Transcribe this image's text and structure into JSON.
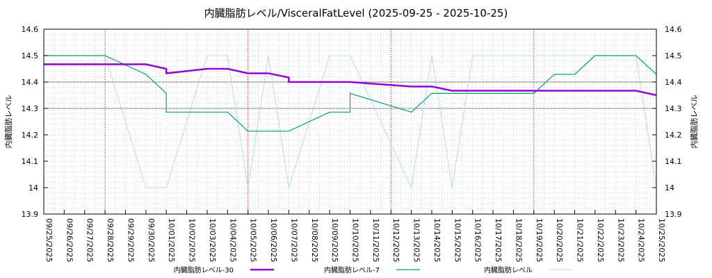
{
  "chart_data": {
    "type": "line",
    "title": "内臓脂肪レベル/VisceralFatLevel (2025-09-25 - 2025-10-25)",
    "ylabel_left": "内臓脂肪レベル",
    "ylabel_right": "内臓脂肪レベル",
    "ylim": [
      13.9,
      14.6
    ],
    "yticks": [
      13.9,
      14,
      14.1,
      14.2,
      14.3,
      14.4,
      14.5,
      14.6
    ],
    "ytick_labels": [
      "13.9",
      "14",
      "14.1",
      "14.2",
      "14.3",
      "14.4",
      "14.5",
      "14.6"
    ],
    "xticks": [
      "09/25/2025",
      "09/26/2025",
      "09/27/2025",
      "09/28/2025",
      "09/29/2025",
      "09/30/2025",
      "10/01/2025",
      "10/02/2025",
      "10/03/2025",
      "10/04/2025",
      "10/05/2025",
      "10/06/2025",
      "10/07/2025",
      "10/08/2025",
      "10/09/2025",
      "10/10/2025",
      "10/11/2025",
      "10/12/2025",
      "10/13/2025",
      "10/14/2025",
      "10/15/2025",
      "10/16/2025",
      "10/17/2025",
      "10/18/2025",
      "10/19/2025",
      "10/20/2025",
      "10/21/2025",
      "10/22/2025",
      "10/23/2025",
      "10/24/2025",
      "10/25/2025"
    ],
    "week_markers": [
      3,
      10,
      17,
      24
    ],
    "reference_lines": [
      {
        "y": 14.4,
        "color": "#0000cc"
      },
      {
        "y": 14.3,
        "color": "#8b0000"
      }
    ],
    "legend_position": "bottom",
    "series": [
      {
        "name": "内臓脂肪レベル-30",
        "color": "#9400d3",
        "width": 2.5,
        "points": [
          [
            0,
            14.467
          ],
          [
            5,
            14.467
          ],
          [
            6,
            14.45
          ],
          [
            6,
            14.433
          ],
          [
            8,
            14.45
          ],
          [
            9,
            14.45
          ],
          [
            10,
            14.433
          ],
          [
            11,
            14.433
          ],
          [
            12,
            14.417
          ],
          [
            12,
            14.4
          ],
          [
            15,
            14.4
          ],
          [
            18,
            14.383
          ],
          [
            19,
            14.383
          ],
          [
            20,
            14.367
          ],
          [
            29,
            14.367
          ],
          [
            30,
            14.35
          ]
        ]
      },
      {
        "name": "内臓脂肪レベル-7",
        "color": "#009e73",
        "width": 1.2,
        "points": [
          [
            0,
            14.5
          ],
          [
            3,
            14.5
          ],
          [
            5,
            14.429
          ],
          [
            6,
            14.357
          ],
          [
            6,
            14.286
          ],
          [
            9,
            14.286
          ],
          [
            10,
            14.214
          ],
          [
            12,
            14.214
          ],
          [
            14,
            14.286
          ],
          [
            15,
            14.286
          ],
          [
            15,
            14.357
          ],
          [
            18,
            14.286
          ],
          [
            19,
            14.357
          ],
          [
            24,
            14.357
          ],
          [
            25,
            14.429
          ],
          [
            26,
            14.429
          ],
          [
            27,
            14.5
          ],
          [
            29,
            14.5
          ],
          [
            30,
            14.429
          ]
        ]
      },
      {
        "name": "内臓脂肪レベル",
        "color": "#b0dcf0",
        "width": 1,
        "points": [
          [
            0,
            14.5
          ],
          [
            3,
            14.5
          ],
          [
            5,
            14.0
          ],
          [
            6,
            14.0
          ],
          [
            8,
            14.5
          ],
          [
            9,
            14.5
          ],
          [
            10,
            14.0
          ],
          [
            11,
            14.5
          ],
          [
            12,
            14.0
          ],
          [
            14,
            14.5
          ],
          [
            15,
            14.5
          ],
          [
            18,
            14.0
          ],
          [
            19,
            14.5
          ],
          [
            20,
            14.0
          ],
          [
            21,
            14.5
          ],
          [
            29,
            14.5
          ],
          [
            30,
            14.0
          ]
        ]
      }
    ]
  }
}
